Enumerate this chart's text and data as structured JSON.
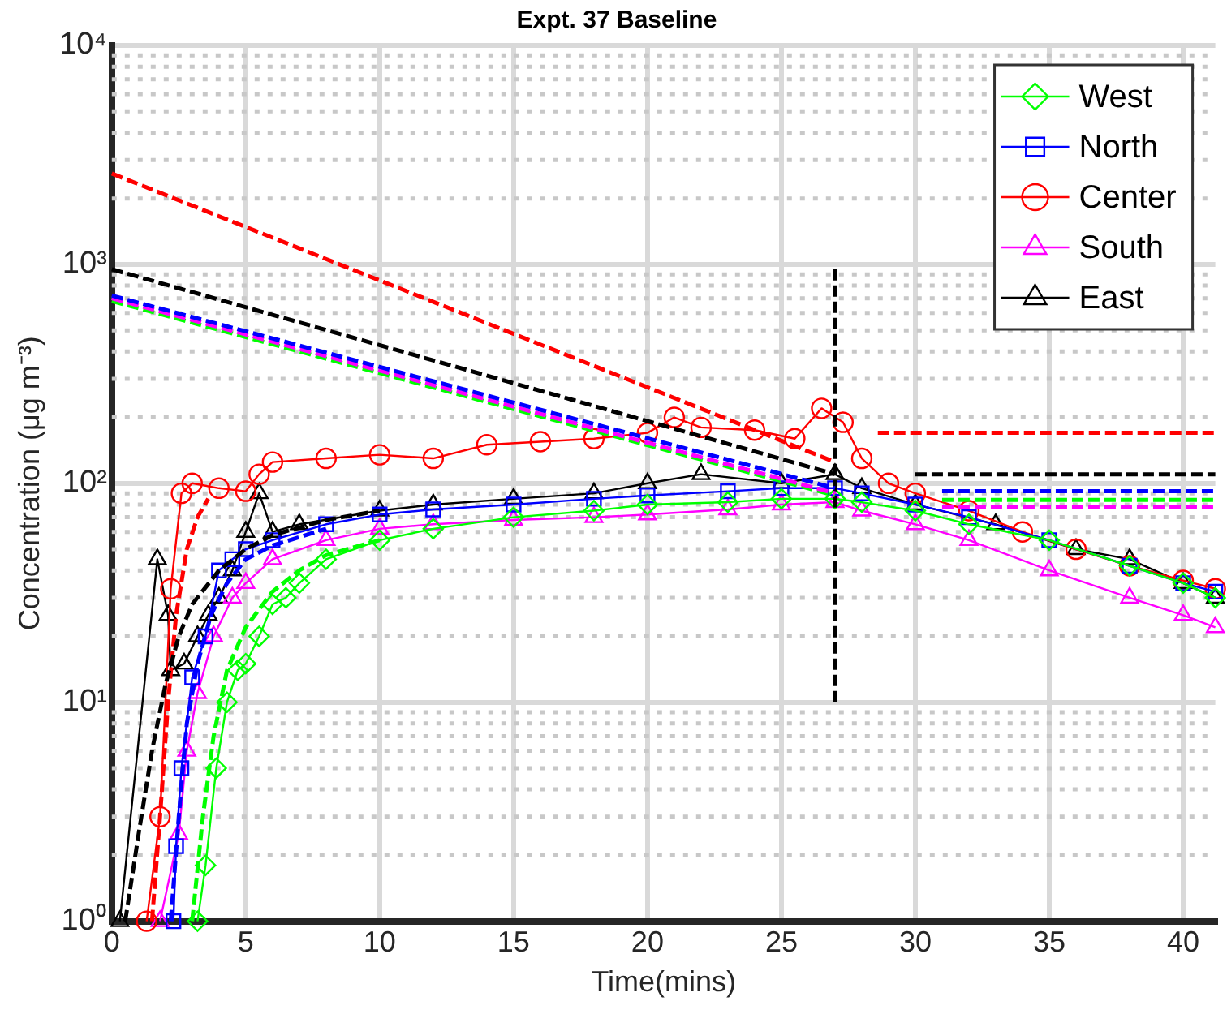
{
  "chart_data": {
    "type": "line",
    "title": "Expt. 37 Baseline",
    "xlabel": "Time(mins)",
    "ylabel": "Concentration (μg m⁻³)",
    "xlim": [
      0,
      41.2
    ],
    "xticks": [
      0,
      5,
      10,
      15,
      20,
      25,
      30,
      35,
      40
    ],
    "ylim": [
      1,
      10000
    ],
    "yticks": [
      {
        "value": 1,
        "label": "10⁰"
      },
      {
        "value": 10,
        "label": "10¹"
      },
      {
        "value": 100,
        "label": "10²"
      },
      {
        "value": 1000,
        "label": "10³"
      },
      {
        "value": 10000,
        "label": "10⁴"
      }
    ],
    "log": "y",
    "grid": true,
    "legend": "top right",
    "series": [
      {
        "name": "West",
        "color": "#00ff00",
        "marker": "diamond",
        "line_style": "solid",
        "x": [
          3.2,
          3.5,
          3.9,
          4.3,
          4.7,
          5,
          5.5,
          6,
          6.5,
          7,
          8,
          10,
          12,
          15,
          18,
          20,
          23,
          25,
          27,
          28,
          30,
          32,
          35,
          38,
          40,
          41.2
        ],
        "values": [
          1,
          1.8,
          5,
          10,
          14,
          15,
          20,
          28,
          30,
          35,
          45,
          55,
          62,
          70,
          75,
          80,
          82,
          85,
          85,
          82,
          75,
          65,
          55,
          42,
          35,
          30
        ]
      },
      {
        "name": "North",
        "color": "#0000ff",
        "marker": "square",
        "line_style": "solid",
        "x": [
          2.3,
          2.4,
          2.6,
          3,
          3.5,
          4,
          4.5,
          5,
          6,
          8,
          10,
          12,
          15,
          18,
          20,
          23,
          25,
          27,
          28,
          30,
          32,
          35,
          38,
          40,
          41.2
        ],
        "values": [
          1,
          2.2,
          5,
          13,
          20,
          40,
          45,
          50,
          55,
          65,
          72,
          76,
          80,
          85,
          88,
          92,
          95,
          95,
          90,
          80,
          70,
          55,
          42,
          35,
          32
        ]
      },
      {
        "name": "Center",
        "color": "#ff0000",
        "marker": "circle",
        "line_style": "solid",
        "x": [
          1.3,
          1.8,
          2.2,
          2.6,
          3,
          4,
          5,
          5.5,
          6,
          8,
          10,
          12,
          14,
          16,
          18,
          20,
          21,
          22,
          24,
          25.5,
          26.5,
          27.3,
          28,
          29,
          30,
          32,
          34,
          36,
          38,
          40,
          41.2
        ],
        "values": [
          1,
          3,
          33,
          90,
          100,
          95,
          92,
          110,
          125,
          130,
          135,
          130,
          150,
          155,
          160,
          170,
          200,
          180,
          175,
          160,
          220,
          190,
          130,
          100,
          90,
          75,
          60,
          50,
          42,
          36,
          33
        ]
      },
      {
        "name": "South",
        "color": "#ff00ff",
        "marker": "triangle",
        "line_style": "solid",
        "x": [
          1.8,
          2.5,
          2.8,
          3.2,
          3.8,
          4.5,
          5,
          6,
          8,
          10,
          12,
          15,
          18,
          20,
          23,
          25,
          27,
          28,
          30,
          32,
          35,
          38,
          40,
          41.2
        ],
        "values": [
          1,
          2.5,
          6,
          11,
          20,
          30,
          35,
          45,
          55,
          62,
          65,
          68,
          70,
          72,
          76,
          80,
          82,
          75,
          65,
          55,
          40,
          30,
          25,
          22
        ]
      },
      {
        "name": "East",
        "color": "#000000",
        "marker": "triangle",
        "line_style": "solid",
        "x": [
          0.3,
          1.7,
          2.1,
          2.2,
          2.7,
          3.2,
          3.6,
          4,
          4.5,
          5,
          5.5,
          6,
          7,
          10,
          12,
          15,
          18,
          20,
          22,
          25,
          27,
          28,
          30,
          33,
          36,
          38,
          40,
          41.2
        ],
        "values": [
          1,
          45,
          25,
          14,
          15,
          20,
          25,
          30,
          40,
          60,
          90,
          60,
          65,
          75,
          80,
          85,
          90,
          100,
          110,
          100,
          110,
          95,
          80,
          65,
          50,
          45,
          35,
          30
        ]
      },
      {
        "color": "#ff0000",
        "marker": "none",
        "line_style": "dashed",
        "x": [
          0,
          27
        ],
        "values": [
          2600,
          125
        ]
      },
      {
        "color": "#000000",
        "marker": "none",
        "line_style": "dashed",
        "x": [
          0,
          27
        ],
        "values": [
          950,
          110
        ]
      },
      {
        "color": "#0000ff",
        "marker": "none",
        "line_style": "dashed",
        "x": [
          0,
          27
        ],
        "values": [
          720,
          95
        ]
      },
      {
        "color": "#ff00ff",
        "marker": "none",
        "line_style": "dashed",
        "x": [
          0,
          27
        ],
        "values": [
          700,
          90
        ]
      },
      {
        "color": "#00ff00",
        "marker": "none",
        "line_style": "dashed",
        "x": [
          0,
          27
        ],
        "values": [
          680,
          88
        ]
      },
      {
        "color": "#ff0000",
        "marker": "none",
        "line_style": "dashed",
        "x": [
          28.6,
          41.2
        ],
        "values": [
          170,
          170
        ]
      },
      {
        "color": "#000000",
        "marker": "none",
        "line_style": "dashed",
        "x": [
          30,
          41.2
        ],
        "values": [
          110,
          110
        ]
      },
      {
        "color": "#0000ff",
        "marker": "none",
        "line_style": "dashed",
        "x": [
          31,
          41.2
        ],
        "values": [
          92,
          92
        ]
      },
      {
        "color": "#00ff00",
        "marker": "none",
        "line_style": "dashed",
        "x": [
          31,
          41.2
        ],
        "values": [
          84,
          84
        ]
      },
      {
        "color": "#ff00ff",
        "marker": "none",
        "line_style": "dashed",
        "x": [
          31,
          41.2
        ],
        "values": [
          78,
          78
        ]
      },
      {
        "color": "#000000",
        "marker": "none",
        "line_style": "dashed",
        "x": [
          0.5,
          1,
          1.5,
          2,
          2.5,
          3,
          4,
          5,
          6,
          8,
          10
        ],
        "values": [
          1,
          2.5,
          6,
          12,
          20,
          28,
          40,
          50,
          58,
          68,
          75
        ]
      },
      {
        "color": "#ff0000",
        "marker": "none",
        "line_style": "dashed",
        "x": [
          1.5,
          1.8,
          2.1,
          2.4,
          2.8,
          3.2,
          3.6
        ],
        "values": [
          1,
          3,
          10,
          25,
          50,
          70,
          85
        ]
      },
      {
        "color": "#0000ff",
        "marker": "none",
        "line_style": "dashed",
        "x": [
          2.2,
          2.5,
          2.8,
          3.2,
          3.7,
          4.3,
          5,
          6,
          8
        ],
        "values": [
          1,
          3,
          8,
          15,
          25,
          35,
          45,
          52,
          62
        ]
      },
      {
        "color": "#00ff00",
        "marker": "none",
        "line_style": "dashed",
        "x": [
          3,
          3.4,
          3.8,
          4.3,
          5,
          6,
          7,
          8,
          10
        ],
        "values": [
          1,
          3,
          7,
          14,
          22,
          32,
          40,
          47,
          55
        ]
      },
      {
        "color": "#000000",
        "marker": "none",
        "line_style": "dashed",
        "x": [
          27,
          27
        ],
        "values": [
          10,
          1000
        ]
      }
    ]
  }
}
